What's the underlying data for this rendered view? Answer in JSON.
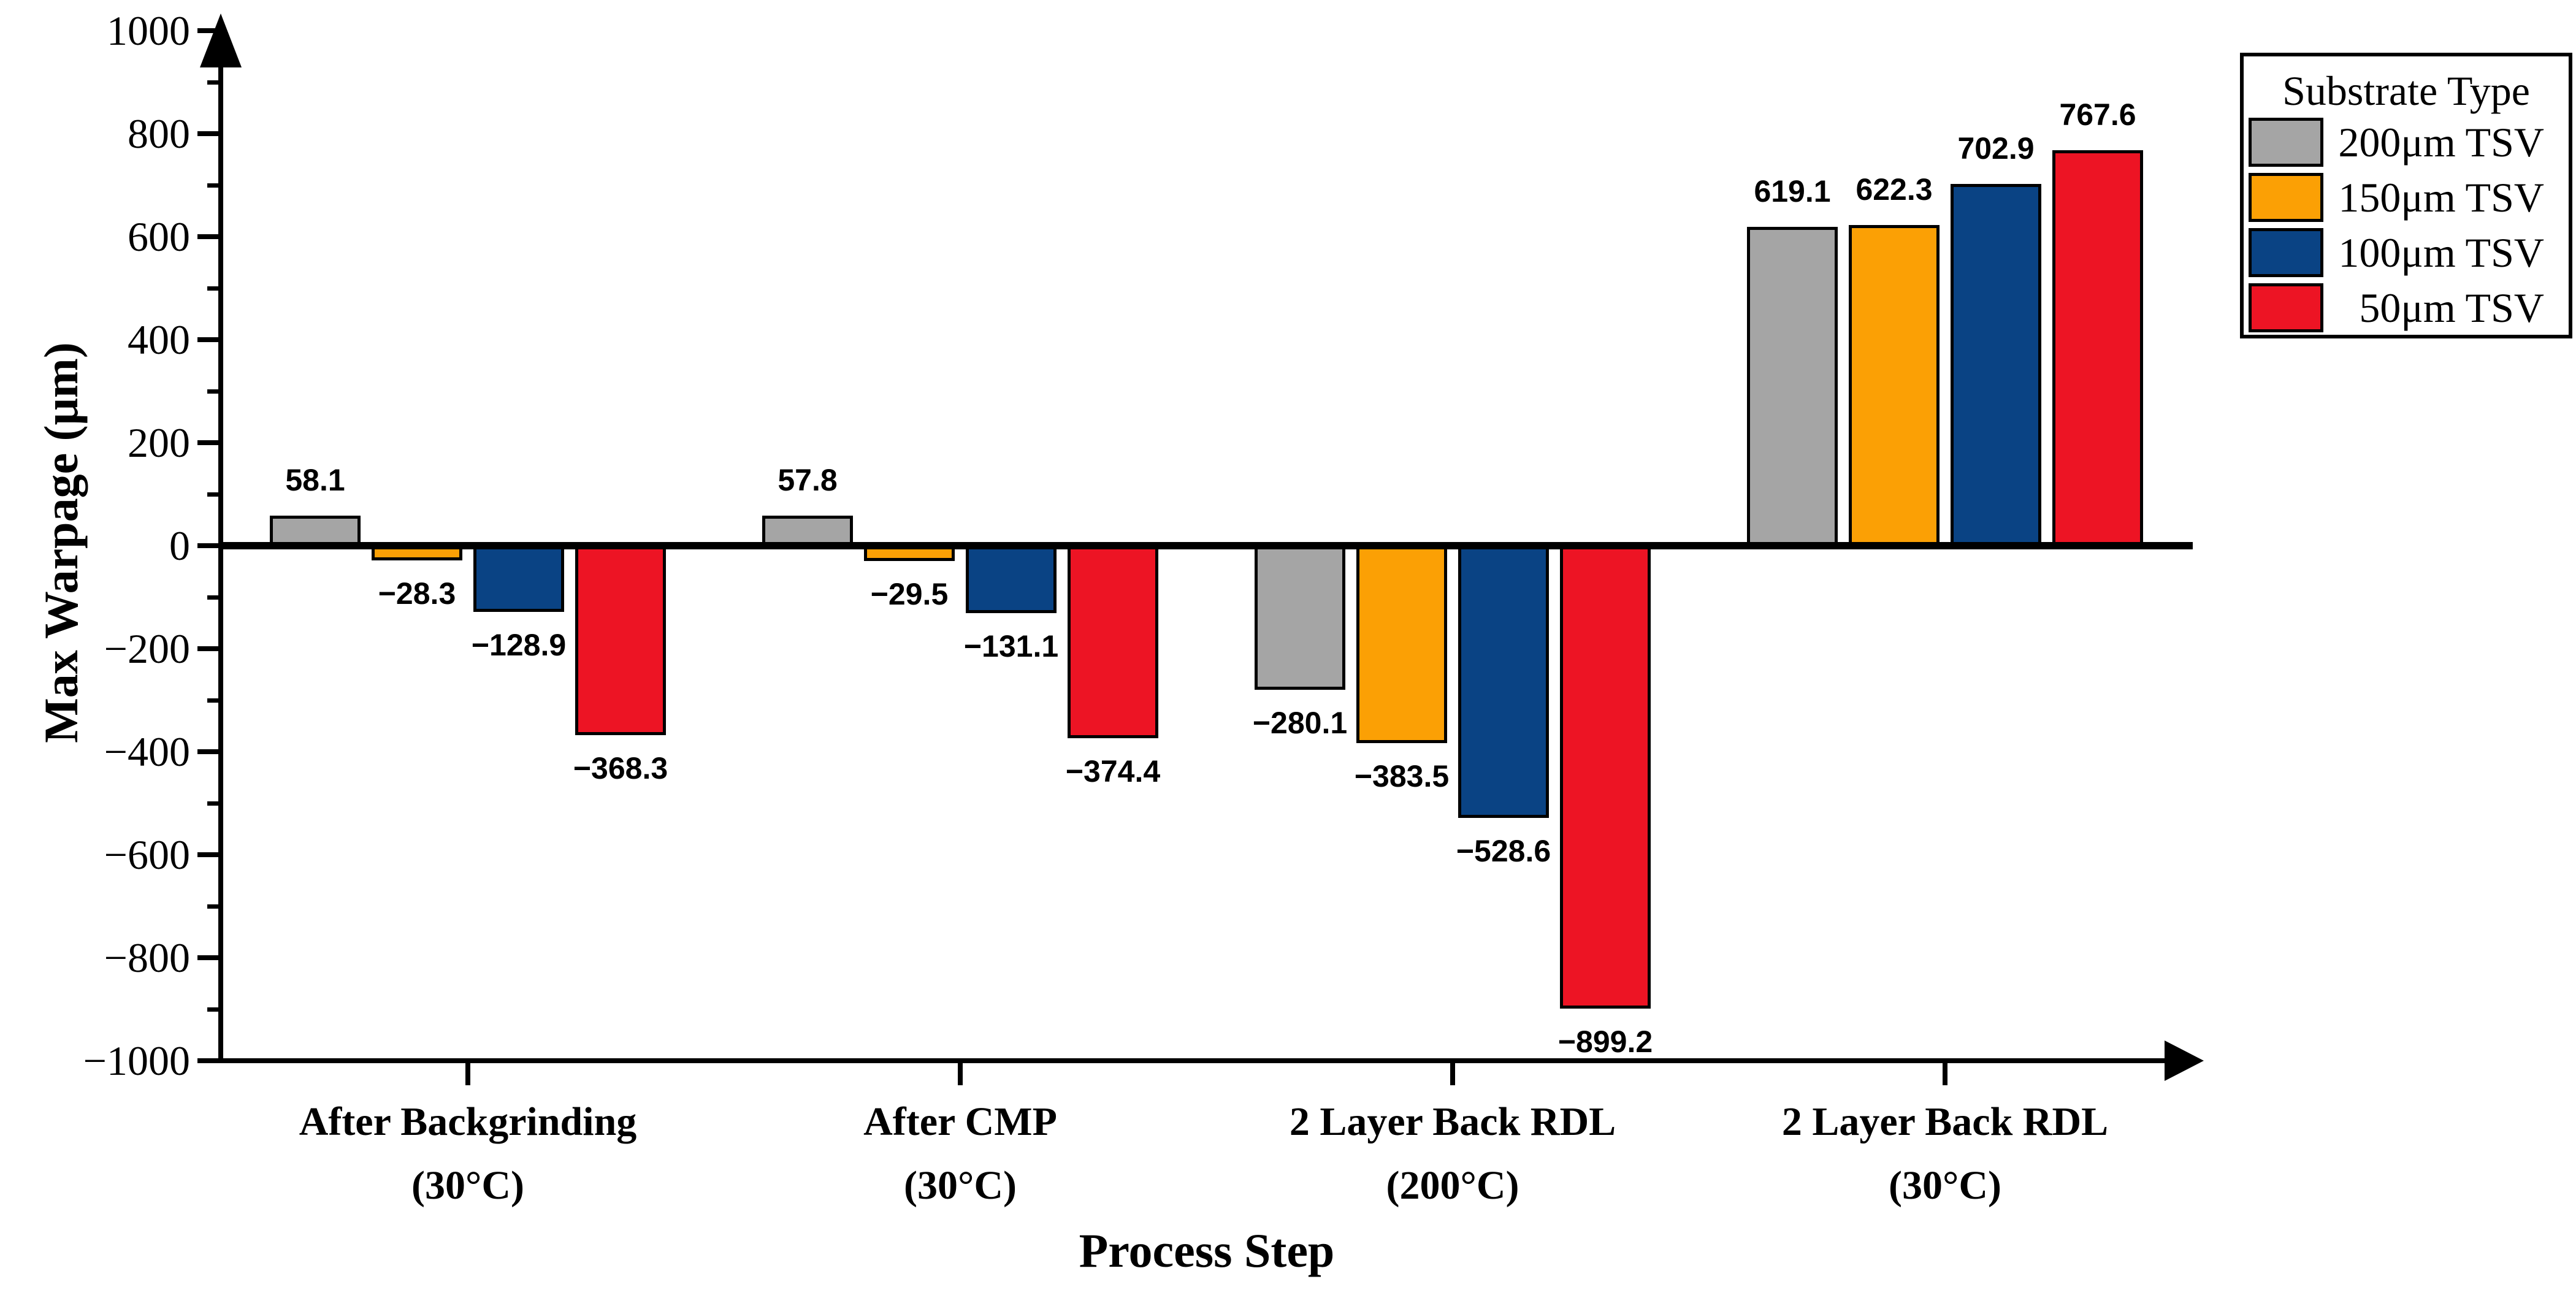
{
  "chart_data": {
    "type": "bar",
    "title": "",
    "xlabel": "Process Step",
    "ylabel": "Max Warpage (μm)",
    "ylim": [
      -1000,
      1000
    ],
    "y_major_step": 200,
    "y_minor_step": 100,
    "grid": false,
    "legend_position": "top-right",
    "legend_title": "Substrate Type",
    "background_color": "#ffffff",
    "axis_color": "#000000",
    "bar_border_color": "#000000",
    "y_major_ticks": [
      1000,
      800,
      600,
      400,
      200,
      0,
      -200,
      -400,
      -600,
      -800,
      -1000
    ],
    "y_tick_labels": [
      "1000",
      "800",
      "600",
      "400",
      "200",
      "0",
      "−200",
      "−400",
      "−600",
      "−800",
      "−1000"
    ],
    "y_minor_ticks": [
      900,
      700,
      500,
      300,
      100,
      -100,
      -300,
      -500,
      -700,
      -900
    ],
    "categories": [
      [
        "After Backgrinding",
        "(30°C)"
      ],
      [
        "After CMP",
        "(30°C)"
      ],
      [
        "2 Layer Back RDL",
        "(200°C)"
      ],
      [
        "2 Layer Back RDL",
        "(30°C)"
      ]
    ],
    "series": [
      {
        "name": "200μm TSV",
        "color": "#A5A5A5",
        "values": [
          58.1,
          57.8,
          -280.1,
          619.1
        ],
        "labels": [
          "58.1",
          "57.8",
          "−280.1",
          "619.1"
        ]
      },
      {
        "name": "150μm TSV",
        "color": "#FBA005",
        "values": [
          -28.3,
          -29.5,
          -383.5,
          622.3
        ],
        "labels": [
          "−28.3",
          "−29.5",
          "−383.5",
          "622.3"
        ]
      },
      {
        "name": "100μm TSV",
        "color": "#0A4384",
        "values": [
          -128.9,
          -131.1,
          -528.6,
          702.9
        ],
        "labels": [
          "−128.9",
          "−131.1",
          "−528.6",
          "702.9"
        ]
      },
      {
        "name": "50μm TSV",
        "color": "#ED1424",
        "values": [
          -368.3,
          -374.4,
          -899.2,
          767.6
        ],
        "labels": [
          "−368.3",
          "−374.4",
          "−899.2",
          "767.6"
        ]
      }
    ]
  }
}
